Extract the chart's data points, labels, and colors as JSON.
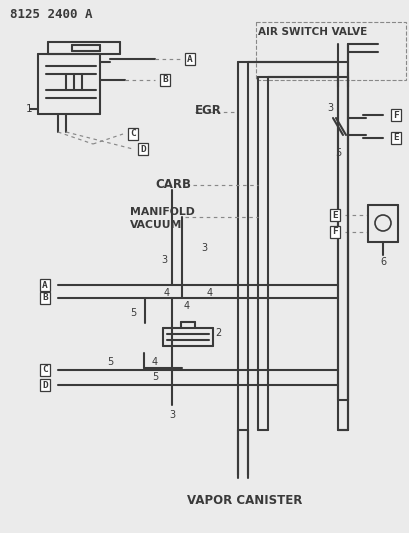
{
  "title": "8125 2400 A",
  "bg_color": "#ebebeb",
  "line_color": "#3a3a3a",
  "gray_color": "#888888",
  "labels": {
    "air_switch_valve": "AIR SWITCH VALVE",
    "egr": "EGR",
    "carb": "CARB",
    "manifold_vacuum": "MANIFOLD\nVACUUM",
    "vapor_canister": "VAPOR CANISTER"
  },
  "hose_lw": 1.5,
  "dash_lw": 0.85
}
